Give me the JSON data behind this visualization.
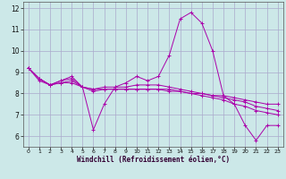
{
  "xlabel": "Windchill (Refroidissement éolien,°C)",
  "background_color": "#cce8e8",
  "grid_color": "#aaaacc",
  "line_color": "#aa00aa",
  "xlim": [
    -0.5,
    23.5
  ],
  "ylim": [
    5.5,
    12.3
  ],
  "yticks": [
    6,
    7,
    8,
    9,
    10,
    11,
    12
  ],
  "xticks": [
    0,
    1,
    2,
    3,
    4,
    5,
    6,
    7,
    8,
    9,
    10,
    11,
    12,
    13,
    14,
    15,
    16,
    17,
    18,
    19,
    20,
    21,
    22,
    23
  ],
  "series": [
    [
      9.2,
      8.7,
      8.4,
      8.6,
      8.8,
      8.3,
      6.3,
      7.5,
      8.3,
      8.5,
      8.8,
      8.6,
      8.8,
      9.8,
      11.5,
      11.8,
      11.3,
      10.0,
      7.9,
      7.5,
      6.5,
      5.8,
      6.5,
      6.5
    ],
    [
      9.2,
      8.7,
      8.4,
      8.6,
      8.7,
      8.3,
      8.2,
      8.3,
      8.3,
      8.3,
      8.4,
      8.4,
      8.4,
      8.3,
      8.2,
      8.1,
      8.0,
      7.9,
      7.9,
      7.8,
      7.7,
      7.6,
      7.5,
      7.5
    ],
    [
      9.2,
      8.7,
      8.4,
      8.5,
      8.5,
      8.3,
      8.2,
      8.2,
      8.2,
      8.2,
      8.2,
      8.2,
      8.2,
      8.1,
      8.1,
      8.0,
      8.0,
      7.9,
      7.8,
      7.7,
      7.6,
      7.4,
      7.3,
      7.2
    ],
    [
      9.2,
      8.6,
      8.4,
      8.5,
      8.6,
      8.3,
      8.1,
      8.2,
      8.2,
      8.2,
      8.2,
      8.2,
      8.2,
      8.2,
      8.1,
      8.0,
      7.9,
      7.8,
      7.7,
      7.5,
      7.4,
      7.2,
      7.1,
      7.0
    ]
  ]
}
